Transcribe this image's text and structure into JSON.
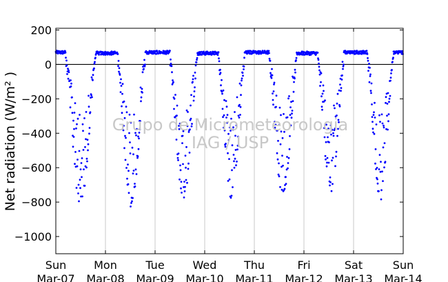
{
  "chart_data": {
    "type": "scatter",
    "ylabel": "Net radiation (W/m² )",
    "xlabel": "",
    "title": "",
    "ylim": [
      -1100,
      210
    ],
    "xlim": [
      0,
      7
    ],
    "yticks": [
      200,
      0,
      -200,
      -400,
      -600,
      -800,
      -1000
    ],
    "ytick_labels": [
      "200",
      "0",
      "−200",
      "−400",
      "−600",
      "−800",
      "−1000"
    ],
    "xticks": [
      0,
      1,
      2,
      3,
      4,
      5,
      6,
      7
    ],
    "xtick_labels": [
      [
        "Sun",
        "Mar-07"
      ],
      [
        "Mon",
        "Mar-08"
      ],
      [
        "Tue",
        "Mar-09"
      ],
      [
        "Wed",
        "Mar-10"
      ],
      [
        "Thu",
        "Mar-11"
      ],
      [
        "Fri",
        "Mar-12"
      ],
      [
        "Sat",
        "Mar-13"
      ],
      [
        "Sun",
        "Mar-14"
      ]
    ],
    "x_unit": "days since Sun Mar-07",
    "zero_line": 0,
    "vertical_grid": true,
    "marker_color": "#0000ff",
    "watermark": [
      "Grupo de Micrometeorologia",
      "IAG / USP"
    ],
    "series": [
      {
        "daily_pattern": [
          {
            "day": 0,
            "day_start": 0.0,
            "night_value": 70,
            "night_end": 0.2,
            "min": -830,
            "min_at": 0.5,
            "night_start": 0.8
          },
          {
            "day": 1,
            "day_start": 1.0,
            "night_value": 65,
            "night_end": 1.25,
            "min": -840,
            "min_at": 1.52,
            "night_start": 1.8
          },
          {
            "day": 2,
            "day_start": 2.0,
            "night_value": 70,
            "night_end": 2.3,
            "min": -790,
            "min_at": 2.55,
            "night_start": 2.85
          },
          {
            "day": 3,
            "day_start": 3.0,
            "night_value": 65,
            "night_end": 3.28,
            "min": -800,
            "min_at": 3.55,
            "night_start": 3.8
          },
          {
            "day": 4,
            "day_start": 4.0,
            "night_value": 70,
            "night_end": 4.3,
            "min": -780,
            "min_at": 4.55,
            "night_start": 4.85
          },
          {
            "day": 5,
            "day_start": 5.0,
            "night_value": 65,
            "night_end": 5.28,
            "min": -760,
            "min_at": 5.5,
            "night_start": 5.8
          },
          {
            "day": 6,
            "day_start": 6.0,
            "night_value": 70,
            "night_end": 6.28,
            "min": -790,
            "min_at": 6.52,
            "night_start": 6.8
          }
        ]
      }
    ]
  }
}
